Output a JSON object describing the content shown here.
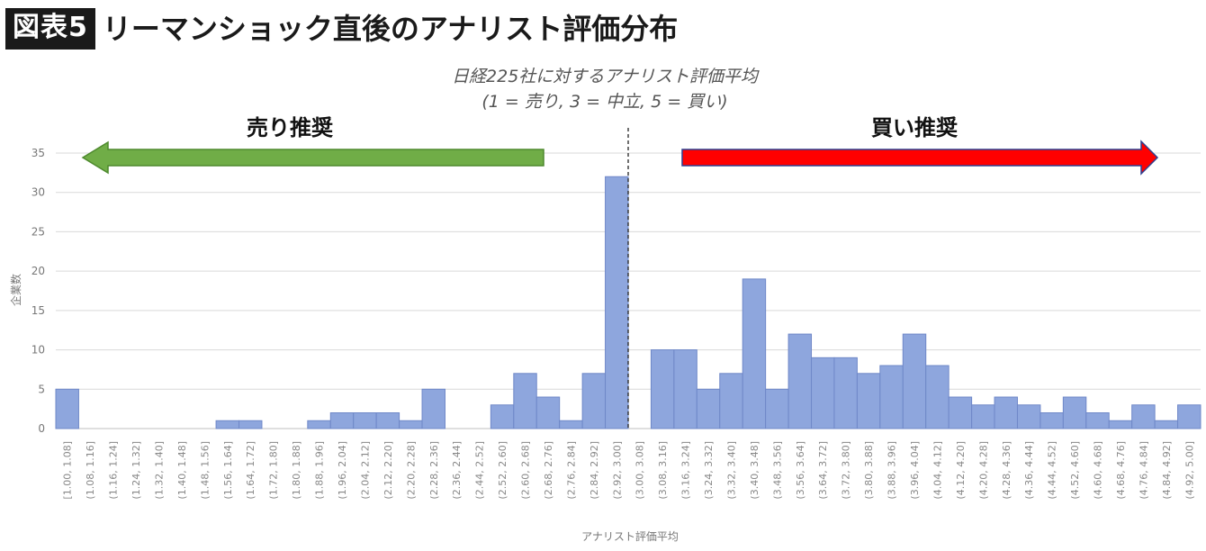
{
  "header": {
    "badge": "図表5",
    "title": "リーマンショック直後のアナリスト評価分布"
  },
  "chart_data": {
    "type": "bar",
    "title": "日経225社に対するアナリスト評価平均",
    "subtitle": "(1 = 売り, 3 = 中立, 5 = 買い)",
    "xlabel": "アナリスト評価平均",
    "ylabel": "企業数",
    "ylim": [
      0,
      35
    ],
    "yticks": [
      0,
      5,
      10,
      15,
      20,
      25,
      30,
      35
    ],
    "grid": true,
    "bar_color": "#8EA6DD",
    "bar_edge_color": "#6F88C8",
    "categories": [
      "[1.00, 1.08]",
      "(1.08, 1.16]",
      "(1.16, 1.24]",
      "(1.24, 1.32]",
      "(1.32, 1.40]",
      "(1.40, 1.48]",
      "(1.48, 1.56]",
      "(1.56, 1.64]",
      "(1.64, 1.72]",
      "(1.72, 1.80]",
      "(1.80, 1.88]",
      "(1.88, 1.96]",
      "(1.96, 2.04]",
      "(2.04, 2.12]",
      "(2.12, 2.20]",
      "(2.20, 2.28]",
      "(2.28, 2.36]",
      "(2.36, 2.44]",
      "(2.44, 2.52]",
      "(2.52, 2.60]",
      "(2.60, 2.68]",
      "(2.68, 2.76]",
      "(2.76, 2.84]",
      "(2.84, 2.92]",
      "(2.92, 3.00]",
      "(3.00, 3.08]",
      "(3.08, 3.16]",
      "(3.16, 3.24]",
      "(3.24, 3.32]",
      "(3.32, 3.40]",
      "(3.40, 3.48]",
      "(3.48, 3.56]",
      "(3.56, 3.64]",
      "(3.64, 3.72]",
      "(3.72, 3.80]",
      "(3.80, 3.88]",
      "(3.88, 3.96]",
      "(3.96, 4.04]",
      "(4.04, 4.12]",
      "(4.12, 4.20]",
      "(4.20, 4.28]",
      "(4.28, 4.36]",
      "(4.36, 4.44]",
      "(4.44, 4.52]",
      "(4.52, 4.60]",
      "(4.60, 4.68]",
      "(4.68, 4.76]",
      "(4.76, 4.84]",
      "(4.84, 4.92]",
      "(4.92, 5.00]"
    ],
    "values": [
      5,
      0,
      0,
      0,
      0,
      0,
      0,
      1,
      1,
      0,
      0,
      1,
      2,
      2,
      2,
      1,
      5,
      0,
      0,
      3,
      7,
      4,
      1,
      7,
      32,
      0,
      10,
      10,
      5,
      7,
      19,
      5,
      12,
      9,
      9,
      7,
      8,
      12,
      8,
      4,
      3,
      4,
      3,
      2,
      4,
      2,
      1,
      3,
      1,
      3
    ],
    "annotations": {
      "sell": {
        "label": "売り推奨",
        "color": "#70AD47"
      },
      "buy": {
        "label": "買い推奨",
        "color": "#FF0000"
      },
      "divider_at": 3.0
    }
  }
}
